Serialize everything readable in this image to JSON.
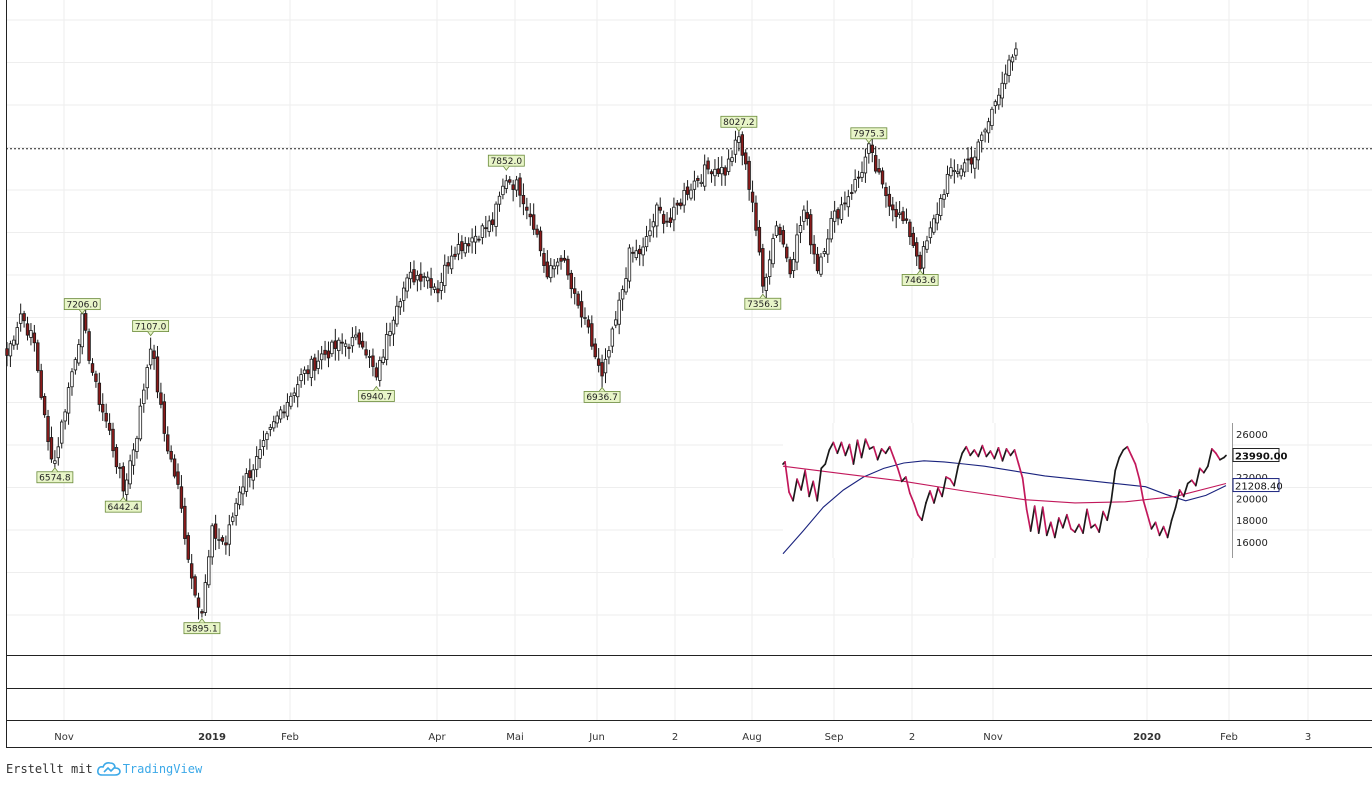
{
  "chart_data": [
    {
      "type": "candlestick",
      "name": "main-price-chart",
      "ylim": [
        5700,
        8650
      ],
      "resistance_level": 7980,
      "x_ticks": [
        "Nov",
        "2019",
        "Feb",
        "Apr",
        "Mai",
        "Jun",
        "2",
        "Aug",
        "Sep",
        "2",
        "Nov",
        "2020",
        "Feb",
        "3"
      ],
      "x_tick_bold": [
        false,
        true,
        false,
        false,
        false,
        false,
        false,
        false,
        false,
        false,
        false,
        true,
        false,
        false
      ],
      "anchors": [
        {
          "i": 0,
          "v": 7050
        },
        {
          "i": 4,
          "v": 7240
        },
        {
          "i": 8,
          "v": 7100
        },
        {
          "i": 12,
          "v": 6650
        },
        {
          "i": 14,
          "v": 6574.8
        },
        {
          "i": 18,
          "v": 6900
        },
        {
          "i": 22,
          "v": 7206.0
        },
        {
          "i": 26,
          "v": 6900
        },
        {
          "i": 30,
          "v": 6700
        },
        {
          "i": 34,
          "v": 6442.4
        },
        {
          "i": 38,
          "v": 6700
        },
        {
          "i": 42,
          "v": 7107.0
        },
        {
          "i": 46,
          "v": 6700
        },
        {
          "i": 50,
          "v": 6450
        },
        {
          "i": 54,
          "v": 6050
        },
        {
          "i": 57,
          "v": 5895.1
        },
        {
          "i": 60,
          "v": 6250
        },
        {
          "i": 64,
          "v": 6200
        },
        {
          "i": 68,
          "v": 6450
        },
        {
          "i": 74,
          "v": 6600
        },
        {
          "i": 80,
          "v": 6800
        },
        {
          "i": 86,
          "v": 6950
        },
        {
          "i": 92,
          "v": 7050
        },
        {
          "i": 98,
          "v": 7100
        },
        {
          "i": 104,
          "v": 7120
        },
        {
          "i": 108,
          "v": 6940.7
        },
        {
          "i": 114,
          "v": 7300
        },
        {
          "i": 118,
          "v": 7400
        },
        {
          "i": 122,
          "v": 7420
        },
        {
          "i": 126,
          "v": 7350
        },
        {
          "i": 130,
          "v": 7520
        },
        {
          "i": 136,
          "v": 7580
        },
        {
          "i": 142,
          "v": 7650
        },
        {
          "i": 146,
          "v": 7852.0
        },
        {
          "i": 150,
          "v": 7800
        },
        {
          "i": 154,
          "v": 7650
        },
        {
          "i": 158,
          "v": 7400
        },
        {
          "i": 162,
          "v": 7500
        },
        {
          "i": 166,
          "v": 7300
        },
        {
          "i": 170,
          "v": 7150
        },
        {
          "i": 174,
          "v": 6936.7
        },
        {
          "i": 178,
          "v": 7200
        },
        {
          "i": 182,
          "v": 7500
        },
        {
          "i": 186,
          "v": 7520
        },
        {
          "i": 190,
          "v": 7700
        },
        {
          "i": 194,
          "v": 7650
        },
        {
          "i": 198,
          "v": 7780
        },
        {
          "i": 202,
          "v": 7850
        },
        {
          "i": 206,
          "v": 7900
        },
        {
          "i": 210,
          "v": 7880
        },
        {
          "i": 214,
          "v": 8027.2
        },
        {
          "i": 218,
          "v": 7750
        },
        {
          "i": 221,
          "v": 7356.3
        },
        {
          "i": 225,
          "v": 7650
        },
        {
          "i": 229,
          "v": 7450
        },
        {
          "i": 233,
          "v": 7700
        },
        {
          "i": 237,
          "v": 7450
        },
        {
          "i": 241,
          "v": 7650
        },
        {
          "i": 245,
          "v": 7750
        },
        {
          "i": 249,
          "v": 7850
        },
        {
          "i": 252,
          "v": 7975.3
        },
        {
          "i": 256,
          "v": 7800
        },
        {
          "i": 260,
          "v": 7700
        },
        {
          "i": 264,
          "v": 7600
        },
        {
          "i": 267,
          "v": 7463.6
        },
        {
          "i": 271,
          "v": 7650
        },
        {
          "i": 275,
          "v": 7850
        },
        {
          "i": 279,
          "v": 7900
        },
        {
          "i": 283,
          "v": 7950
        },
        {
          "i": 287,
          "v": 8100
        },
        {
          "i": 291,
          "v": 8300
        },
        {
          "i": 295,
          "v": 8400
        }
      ],
      "pivots": [
        {
          "label": "7206.0",
          "i": 22,
          "v": 7206.0,
          "dir": "high"
        },
        {
          "label": "6574.8",
          "i": 14,
          "v": 6574.8,
          "dir": "low"
        },
        {
          "label": "6442.4",
          "i": 34,
          "v": 6442.4,
          "dir": "low"
        },
        {
          "label": "7107.0",
          "i": 42,
          "v": 7107.0,
          "dir": "high"
        },
        {
          "label": "5895.1",
          "i": 57,
          "v": 5895.1,
          "dir": "low"
        },
        {
          "label": "6940.7",
          "i": 108,
          "v": 6940.7,
          "dir": "low"
        },
        {
          "label": "7852.0",
          "i": 146,
          "v": 7852.0,
          "dir": "high"
        },
        {
          "label": "6936.7",
          "i": 174,
          "v": 6936.7,
          "dir": "low"
        },
        {
          "label": "8027.2",
          "i": 214,
          "v": 8027.2,
          "dir": "high"
        },
        {
          "label": "7356.3",
          "i": 221,
          "v": 7356.3,
          "dir": "low"
        },
        {
          "label": "7975.3",
          "i": 252,
          "v": 7975.3,
          "dir": "high"
        },
        {
          "label": "7463.6",
          "i": 267,
          "v": 7463.6,
          "dir": "low"
        }
      ]
    },
    {
      "type": "line",
      "name": "inset-chart",
      "ylim": [
        14500,
        27000
      ],
      "y_ticks": [
        16000,
        18000,
        20000,
        22000,
        26000
      ],
      "y_tick_labels": [
        "16000",
        "18000",
        "20000",
        "22000",
        "26000"
      ],
      "price_label": "23990.00",
      "ma_label": "21208.40",
      "price": [
        {
          "t": 0,
          "v": 23200
        },
        {
          "t": 2,
          "v": 23400
        },
        {
          "t": 6,
          "v": 20600
        },
        {
          "t": 10,
          "v": 19800
        },
        {
          "t": 14,
          "v": 21800
        },
        {
          "t": 18,
          "v": 20800
        },
        {
          "t": 22,
          "v": 22600
        },
        {
          "t": 26,
          "v": 20200
        },
        {
          "t": 30,
          "v": 21600
        },
        {
          "t": 34,
          "v": 19800
        },
        {
          "t": 38,
          "v": 22800
        },
        {
          "t": 42,
          "v": 23200
        },
        {
          "t": 46,
          "v": 24500
        },
        {
          "t": 50,
          "v": 25200
        },
        {
          "t": 54,
          "v": 24200
        },
        {
          "t": 58,
          "v": 25200
        },
        {
          "t": 62,
          "v": 24000
        },
        {
          "t": 66,
          "v": 25000
        },
        {
          "t": 70,
          "v": 23200
        },
        {
          "t": 74,
          "v": 25400
        },
        {
          "t": 78,
          "v": 23800
        },
        {
          "t": 82,
          "v": 25500
        },
        {
          "t": 86,
          "v": 24600
        },
        {
          "t": 90,
          "v": 24800
        },
        {
          "t": 94,
          "v": 23600
        },
        {
          "t": 98,
          "v": 24600
        },
        {
          "t": 102,
          "v": 24200
        },
        {
          "t": 106,
          "v": 24800
        },
        {
          "t": 110,
          "v": 23800
        },
        {
          "t": 114,
          "v": 22800
        },
        {
          "t": 118,
          "v": 21600
        },
        {
          "t": 122,
          "v": 22000
        },
        {
          "t": 126,
          "v": 20500
        },
        {
          "t": 130,
          "v": 19600
        },
        {
          "t": 134,
          "v": 18500
        },
        {
          "t": 138,
          "v": 18000
        },
        {
          "t": 142,
          "v": 19600
        },
        {
          "t": 146,
          "v": 20700
        },
        {
          "t": 150,
          "v": 19600
        },
        {
          "t": 154,
          "v": 21000
        },
        {
          "t": 158,
          "v": 20200
        },
        {
          "t": 162,
          "v": 22000
        },
        {
          "t": 166,
          "v": 21800
        },
        {
          "t": 170,
          "v": 21200
        },
        {
          "t": 174,
          "v": 23000
        },
        {
          "t": 178,
          "v": 24200
        },
        {
          "t": 182,
          "v": 24800
        },
        {
          "t": 186,
          "v": 24000
        },
        {
          "t": 190,
          "v": 24500
        },
        {
          "t": 194,
          "v": 23900
        },
        {
          "t": 198,
          "v": 24900
        },
        {
          "t": 202,
          "v": 23900
        },
        {
          "t": 206,
          "v": 24400
        },
        {
          "t": 210,
          "v": 23700
        },
        {
          "t": 214,
          "v": 24700
        },
        {
          "t": 218,
          "v": 23500
        },
        {
          "t": 222,
          "v": 24600
        },
        {
          "t": 226,
          "v": 24000
        },
        {
          "t": 230,
          "v": 24500
        },
        {
          "t": 234,
          "v": 23200
        },
        {
          "t": 238,
          "v": 21900
        },
        {
          "t": 242,
          "v": 19000
        },
        {
          "t": 246,
          "v": 17000
        },
        {
          "t": 250,
          "v": 19300
        },
        {
          "t": 254,
          "v": 16800
        },
        {
          "t": 258,
          "v": 19200
        },
        {
          "t": 262,
          "v": 16600
        },
        {
          "t": 266,
          "v": 17800
        },
        {
          "t": 270,
          "v": 16400
        },
        {
          "t": 274,
          "v": 18200
        },
        {
          "t": 278,
          "v": 17300
        },
        {
          "t": 282,
          "v": 18500
        },
        {
          "t": 286,
          "v": 17200
        },
        {
          "t": 290,
          "v": 16900
        },
        {
          "t": 294,
          "v": 17600
        },
        {
          "t": 298,
          "v": 16800
        },
        {
          "t": 302,
          "v": 19000
        },
        {
          "t": 306,
          "v": 17300
        },
        {
          "t": 310,
          "v": 17600
        },
        {
          "t": 314,
          "v": 16900
        },
        {
          "t": 318,
          "v": 18800
        },
        {
          "t": 322,
          "v": 18000
        },
        {
          "t": 326,
          "v": 19800
        },
        {
          "t": 330,
          "v": 22600
        },
        {
          "t": 334,
          "v": 23800
        },
        {
          "t": 338,
          "v": 24500
        },
        {
          "t": 342,
          "v": 24800
        },
        {
          "t": 346,
          "v": 24000
        },
        {
          "t": 350,
          "v": 23200
        },
        {
          "t": 354,
          "v": 21800
        },
        {
          "t": 358,
          "v": 19800
        },
        {
          "t": 362,
          "v": 18500
        },
        {
          "t": 366,
          "v": 17200
        },
        {
          "t": 370,
          "v": 17800
        },
        {
          "t": 374,
          "v": 16600
        },
        {
          "t": 378,
          "v": 17400
        },
        {
          "t": 382,
          "v": 16400
        },
        {
          "t": 386,
          "v": 18000
        },
        {
          "t": 390,
          "v": 19200
        },
        {
          "t": 394,
          "v": 20800
        },
        {
          "t": 398,
          "v": 20200
        },
        {
          "t": 402,
          "v": 21400
        },
        {
          "t": 406,
          "v": 21700
        },
        {
          "t": 410,
          "v": 21200
        },
        {
          "t": 414,
          "v": 22800
        },
        {
          "t": 418,
          "v": 22400
        },
        {
          "t": 422,
          "v": 23000
        },
        {
          "t": 426,
          "v": 24600
        },
        {
          "t": 430,
          "v": 24200
        },
        {
          "t": 434,
          "v": 23600
        },
        {
          "t": 438,
          "v": 23800
        },
        {
          "t": 440,
          "v": 23990
        }
      ],
      "price_colors": [
        "#1a1a1a",
        "#c2185b"
      ],
      "ma_red": [
        {
          "t": 0,
          "v": 23000
        },
        {
          "t": 60,
          "v": 22300
        },
        {
          "t": 120,
          "v": 21600
        },
        {
          "t": 180,
          "v": 20700
        },
        {
          "t": 240,
          "v": 19900
        },
        {
          "t": 290,
          "v": 19600
        },
        {
          "t": 340,
          "v": 19700
        },
        {
          "t": 390,
          "v": 20200
        },
        {
          "t": 440,
          "v": 21400
        }
      ],
      "ma_blue": [
        {
          "t": 0,
          "v": 14900
        },
        {
          "t": 20,
          "v": 17000
        },
        {
          "t": 40,
          "v": 19200
        },
        {
          "t": 60,
          "v": 20800
        },
        {
          "t": 80,
          "v": 22000
        },
        {
          "t": 100,
          "v": 22800
        },
        {
          "t": 120,
          "v": 23300
        },
        {
          "t": 140,
          "v": 23500
        },
        {
          "t": 160,
          "v": 23400
        },
        {
          "t": 180,
          "v": 23200
        },
        {
          "t": 200,
          "v": 23000
        },
        {
          "t": 220,
          "v": 22700
        },
        {
          "t": 240,
          "v": 22400
        },
        {
          "t": 260,
          "v": 22100
        },
        {
          "t": 280,
          "v": 21900
        },
        {
          "t": 300,
          "v": 21700
        },
        {
          "t": 320,
          "v": 21500
        },
        {
          "t": 340,
          "v": 21300
        },
        {
          "t": 360,
          "v": 21100
        },
        {
          "t": 380,
          "v": 20400
        },
        {
          "t": 400,
          "v": 19800
        },
        {
          "t": 420,
          "v": 20300
        },
        {
          "t": 440,
          "v": 21208
        }
      ]
    }
  ],
  "colors": {
    "up_candle": "#ffffff",
    "down_candle": "#8b1a1a",
    "wick": "#1a1a1a",
    "pivot_fill": "#e8f5c8",
    "pivot_border": "#6a8a3a",
    "grid": "#eeeeee",
    "ma_red": "#c2185b",
    "ma_blue": "#1a237e",
    "brand": "#3ca9e8"
  },
  "footer": {
    "created_with": "Erstellt mit",
    "brand": "TradingView"
  }
}
